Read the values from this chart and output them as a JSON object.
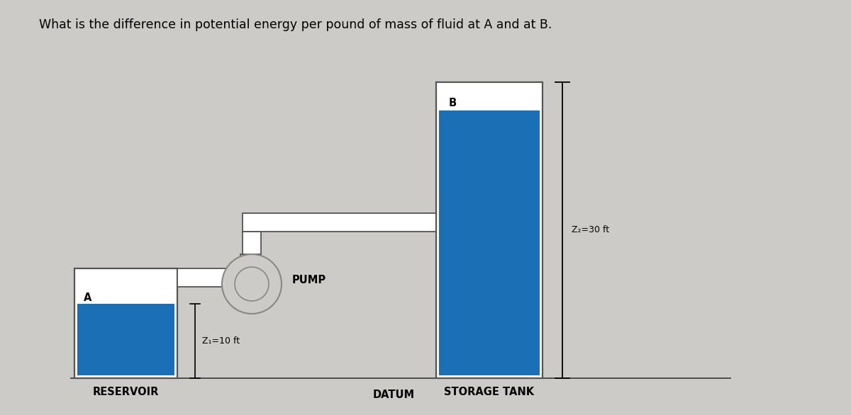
{
  "title": "What is the difference in potential energy per pound of mass of fluid at A and at B.",
  "title_fontsize": 12.5,
  "bg_color": "#cccbc8",
  "pipe_color": "#ffffff",
  "pipe_edge_color": "#555555",
  "fluid_color": "#1a6fb5",
  "pump_edge_color": "#888888",
  "reservoir_label": "RESERVOIR",
  "storage_label": "STORAGE TANK",
  "pump_label": "PUMP",
  "datum_label": "DATUM",
  "z1_label": "Z₁=10 ft",
  "z2_label": "Z₂=30 ft",
  "point_a_label": "A",
  "point_b_label": "B",
  "label_fontsize": 10,
  "small_fontsize": 9,
  "bold_label_fontsize": 10.5
}
